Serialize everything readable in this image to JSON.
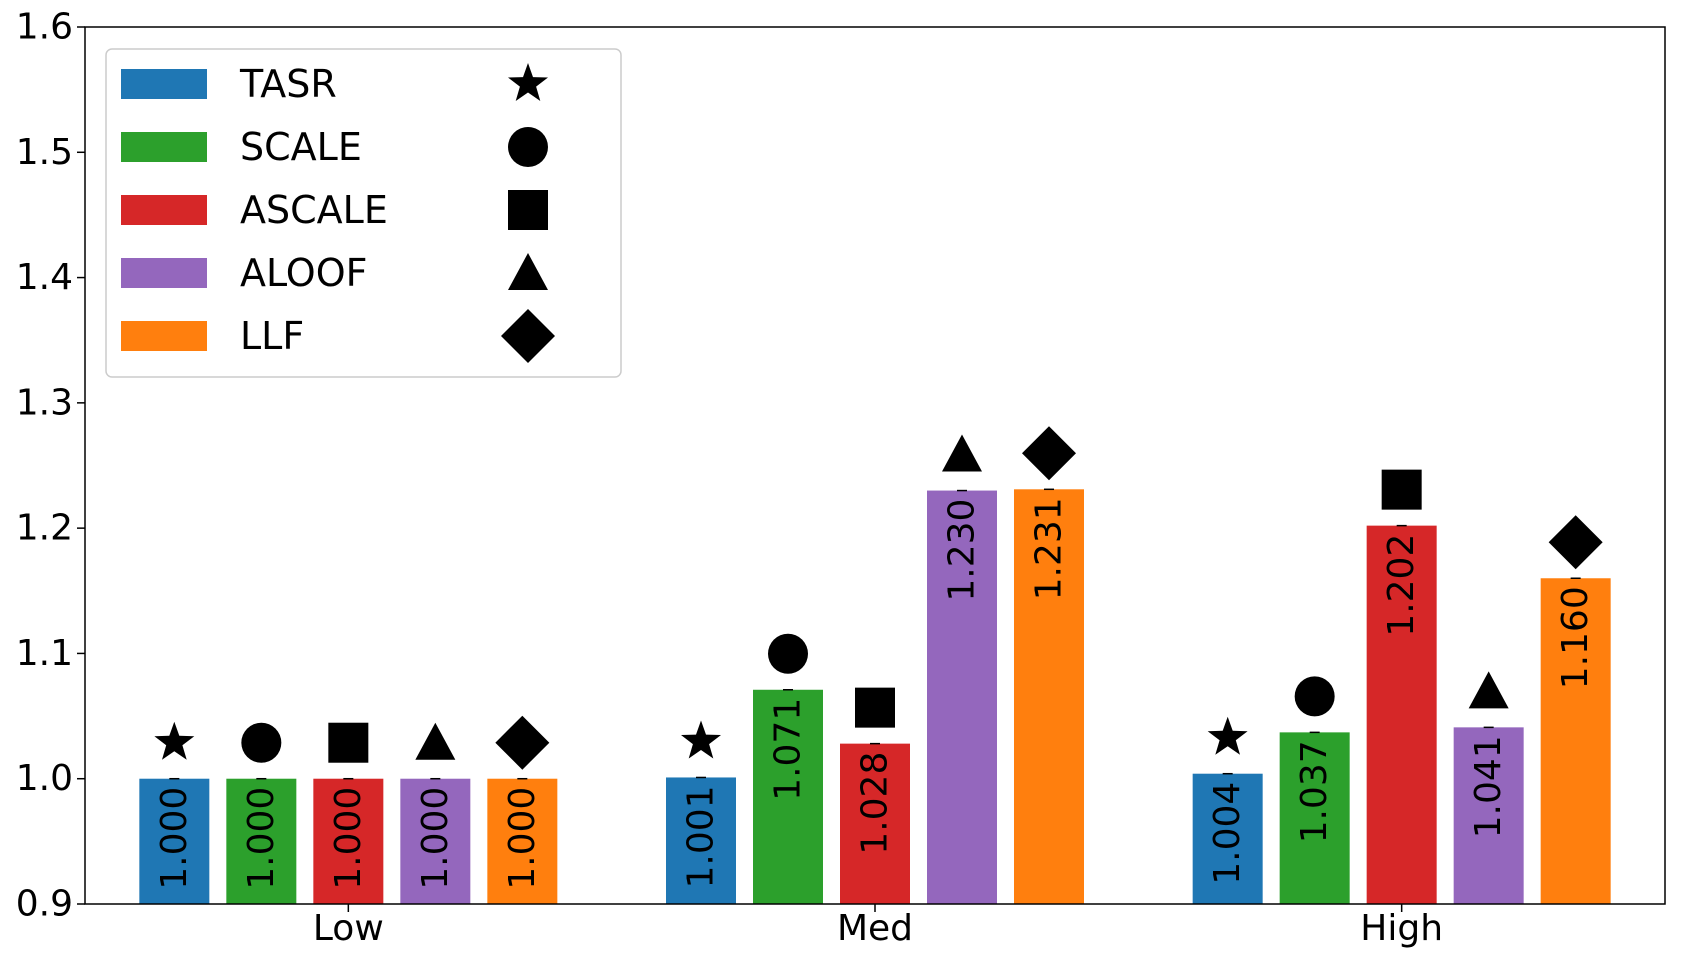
{
  "chart_data": {
    "type": "bar",
    "categories": [
      "Low",
      "Med",
      "High"
    ],
    "ylim": [
      0.9,
      1.6
    ],
    "yticks": [
      "0.9",
      "1.0",
      "1.1",
      "1.2",
      "1.3",
      "1.4",
      "1.5",
      "1.6"
    ],
    "xlabel": "",
    "ylabel": "",
    "legend_position": "top-left",
    "series": [
      {
        "name": "TASR",
        "color": "#1f77b4",
        "marker": "star",
        "values": [
          1.0,
          1.001,
          1.004
        ],
        "labels": [
          "1.000",
          "1.001",
          "1.004"
        ]
      },
      {
        "name": "SCALE",
        "color": "#2ca02c",
        "marker": "circle",
        "values": [
          1.0,
          1.071,
          1.037
        ],
        "labels": [
          "1.000",
          "1.071",
          "1.037"
        ]
      },
      {
        "name": "ASCALE",
        "color": "#d62728",
        "marker": "square",
        "values": [
          1.0,
          1.028,
          1.202
        ],
        "labels": [
          "1.000",
          "1.028",
          "1.202"
        ]
      },
      {
        "name": "ALOOF",
        "color": "#9467bd",
        "marker": "triangle",
        "values": [
          1.0,
          1.23,
          1.041
        ],
        "labels": [
          "1.000",
          "1.230",
          "1.041"
        ]
      },
      {
        "name": "LLF",
        "color": "#ff7f0e",
        "marker": "diamond",
        "values": [
          1.0,
          1.231,
          1.16
        ],
        "labels": [
          "1.000",
          "1.231",
          "1.160"
        ]
      }
    ]
  }
}
